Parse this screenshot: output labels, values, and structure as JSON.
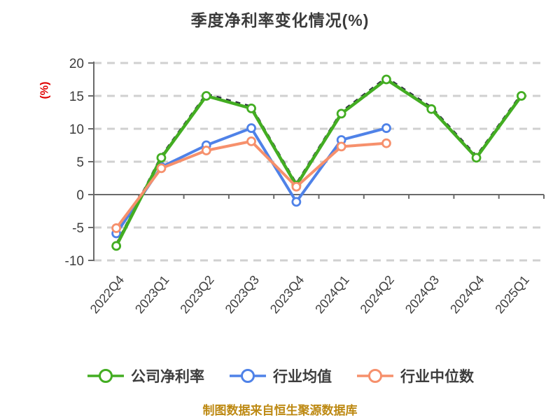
{
  "title": "季度净利率变化情况(%)",
  "y_axis": {
    "unit_label": "(%)",
    "unit_color": "#e00000",
    "ticks": [
      20,
      15,
      10,
      5,
      0,
      -5,
      -10
    ]
  },
  "footer": {
    "note": "制图数据来自恒生聚源数据库",
    "color": "#bd8912"
  },
  "chart_data": {
    "type": "line",
    "title": "季度净利率变化情况(%)",
    "ylabel": "(%)",
    "ylim": [
      -10,
      20
    ],
    "grid": "horizontal-dashed",
    "gridline_color": "#d0d0d0",
    "legend_position": "bottom",
    "categories": [
      "2022Q4",
      "2023Q1",
      "2023Q2",
      "2023Q3",
      "2023Q4",
      "2024Q1",
      "2024Q2",
      "2024Q3",
      "2024Q4",
      "2025Q1"
    ],
    "series": [
      {
        "key": "company-net-margin",
        "name": "公司净利率",
        "color": "#43ad22",
        "values": [
          -7.8,
          5.6,
          15.0,
          13.1,
          1.4,
          12.3,
          17.5,
          13.0,
          5.6,
          15.0
        ]
      },
      {
        "key": "industry-mean",
        "name": "行业均值",
        "color": "#4f82e8",
        "values": [
          -5.9,
          4.2,
          7.5,
          10.1,
          -1.1,
          8.3,
          10.1,
          null,
          null,
          null
        ]
      },
      {
        "key": "industry-median",
        "name": "行业中位数",
        "color": "#f6906c",
        "values": [
          -5.1,
          4.0,
          6.7,
          8.1,
          1.2,
          7.3,
          7.8,
          null,
          null,
          null
        ]
      }
    ]
  }
}
